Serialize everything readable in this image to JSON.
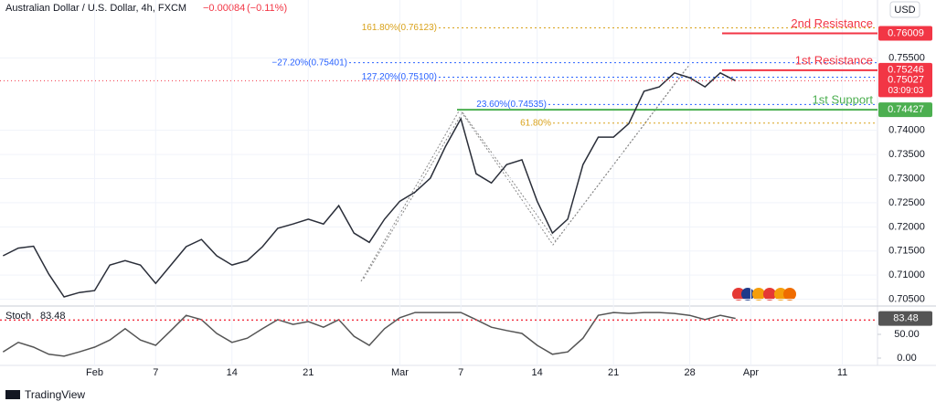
{
  "header": {
    "symbol": "Australian Dollar / U.S. Dollar, 4h, FXCM",
    "change": "−0.00084",
    "change_pct": "(−0.11%)"
  },
  "currency": "USD",
  "footer": {
    "brand": "TradingView"
  },
  "chart_data": [
    {
      "type": "line",
      "x": [
        -6,
        -5,
        -4,
        -3,
        -2,
        -1,
        0,
        1,
        2,
        3,
        4,
        5,
        6,
        7,
        8,
        9,
        10,
        11,
        12,
        13,
        14,
        15,
        16,
        17,
        18,
        19,
        20,
        21,
        22,
        23,
        24,
        25,
        26,
        27,
        28,
        29,
        30,
        31,
        32,
        33,
        34,
        35,
        36,
        37,
        38,
        39,
        40,
        41,
        42
      ],
      "series": [
        {
          "name": "AUDUSD",
          "color": "#2a2e39",
          "values": [
            0.714,
            0.7156,
            0.716,
            0.7102,
            0.7055,
            0.7064,
            0.7068,
            0.7121,
            0.713,
            0.7121,
            0.7083,
            0.7121,
            0.7159,
            0.7174,
            0.714,
            0.7121,
            0.713,
            0.7159,
            0.7197,
            0.7206,
            0.7216,
            0.7206,
            0.7244,
            0.7187,
            0.7168,
            0.7216,
            0.7253,
            0.7272,
            0.7301,
            0.7367,
            0.7424,
            0.731,
            0.7291,
            0.7329,
            0.7339,
            0.7253,
            0.7187,
            0.7216,
            0.7329,
            0.7386,
            0.7386,
            0.7414,
            0.7481,
            0.749,
            0.7519,
            0.7509,
            0.749,
            0.7519,
            0.75027
          ]
        }
      ],
      "countdown": "03:09:03",
      "xlim": [
        -6.2,
        51.3
      ],
      "xticks": [
        {
          "value": 0,
          "label": "Feb"
        },
        {
          "value": 4,
          "label": "7"
        },
        {
          "value": 9,
          "label": "14"
        },
        {
          "value": 14,
          "label": "21"
        },
        {
          "value": 20,
          "label": "Mar"
        },
        {
          "value": 24,
          "label": "7"
        },
        {
          "value": 29,
          "label": "14"
        },
        {
          "value": 34,
          "label": "21"
        },
        {
          "value": 39,
          "label": "28"
        },
        {
          "value": 43,
          "label": "Apr"
        },
        {
          "value": 49,
          "label": "11"
        }
      ],
      "ylim": [
        0.7036,
        0.767
      ],
      "yticks": [
        {
          "value": 0.755,
          "label": "0.75500"
        },
        {
          "value": 0.74,
          "label": "0.74000"
        },
        {
          "value": 0.735,
          "label": "0.73500"
        },
        {
          "value": 0.73,
          "label": "0.73000"
        },
        {
          "value": 0.725,
          "label": "0.72500"
        },
        {
          "value": 0.72,
          "label": "0.72000"
        },
        {
          "value": 0.715,
          "label": "0.71500"
        },
        {
          "value": 0.71,
          "label": "0.71000"
        },
        {
          "value": 0.705,
          "label": "0.70500"
        }
      ],
      "grid": true,
      "levels": [
        {
          "name": "2nd Resistance",
          "value": 0.76009,
          "color": "#f23645"
        },
        {
          "name": "1st Resistance",
          "value": 0.75246,
          "color": "#f23645"
        },
        {
          "name": "1st Support",
          "value": 0.74427,
          "color": "#4caf50"
        }
      ],
      "fib_levels": [
        {
          "label": "161.80%(0.76123)",
          "value": 0.76123,
          "color": "#d9a21b"
        },
        {
          "label": "−27.20%(0.75401)",
          "value": 0.75401,
          "color": "#2962ff"
        },
        {
          "label": "127.20%(0.75100)",
          "value": 0.751,
          "color": "#2962ff"
        },
        {
          "label": "23.60%(0.74535)",
          "value": 0.74535,
          "color": "#2962ff"
        },
        {
          "label": "61.80%",
          "value": 0.7415,
          "color": "#d9a21b"
        }
      ]
    },
    {
      "type": "line",
      "title": "Stoch",
      "series": [
        {
          "name": "Stoch",
          "color": "#555555",
          "values": [
            13,
            33,
            23,
            8,
            4,
            13,
            23,
            38,
            62,
            38,
            27,
            58,
            90,
            81,
            52,
            33,
            42,
            62,
            81,
            71,
            77,
            65,
            81,
            46,
            27,
            62,
            85,
            96,
            96,
            96,
            96,
            81,
            65,
            58,
            52,
            27,
            8,
            13,
            42,
            90,
            96,
            94,
            96,
            96,
            94,
            90,
            81,
            90,
            83.48
          ]
        }
      ],
      "ylim": [
        -15.4,
        109.6
      ],
      "yticks": [
        {
          "value": 0,
          "label": "0.00"
        },
        {
          "value": 50,
          "label": "50.00"
        }
      ],
      "hline": 80
    }
  ]
}
